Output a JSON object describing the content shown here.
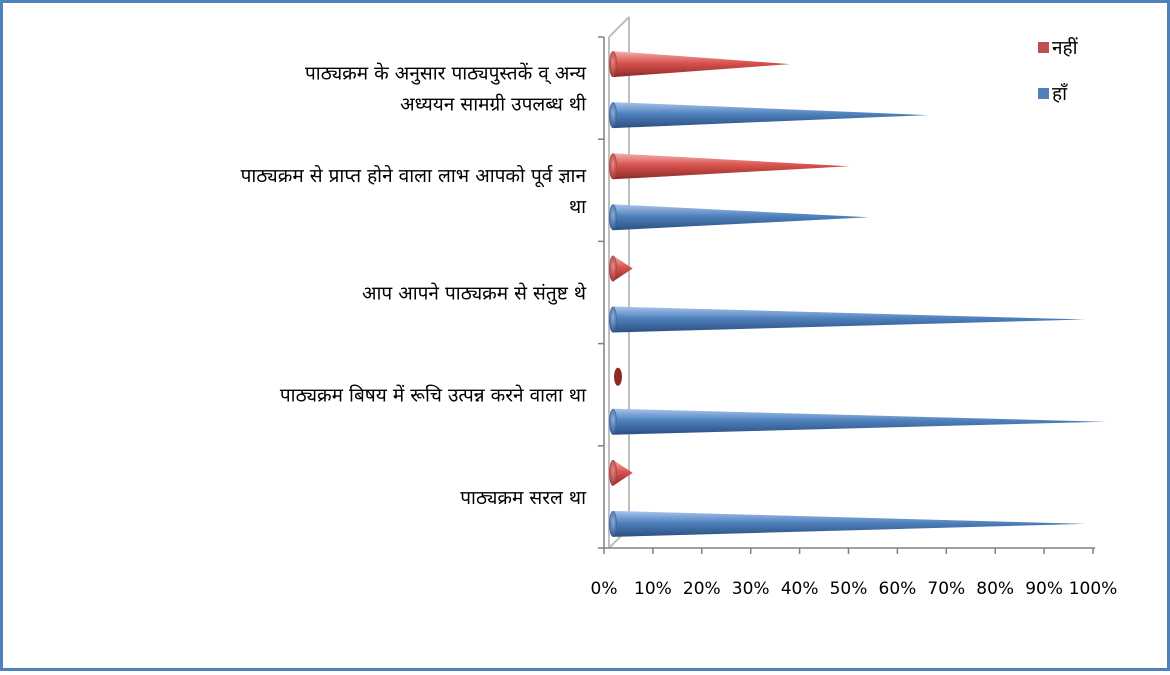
{
  "chart_data": {
    "type": "bar",
    "orientation": "horizontal",
    "style": "3d-cone",
    "categories": [
      [
        "पाठ्यक्रम के अनुसार पाठ्यपुस्तकें  व्  अन्य",
        "अध्ययन सामग्री उपलब्ध थी"
      ],
      [
        "पाठ्यक्रम से प्राप्त होने वाला लाभ आपको पूर्व ज्ञान",
        "था"
      ],
      [
        "आप आपने पाठ्यक्रम से संतुष्ट थे"
      ],
      [
        "पाठ्यक्रम बिषय में रूचि उत्पन्न करने  वाला  था"
      ],
      [
        "पाठ्यक्रम सरल था"
      ]
    ],
    "series": [
      {
        "name": "नहीं",
        "values": [
          36,
          48,
          4,
          0.5,
          4
        ]
      },
      {
        "name": "हाँ",
        "values": [
          64,
          52,
          96,
          100,
          96
        ]
      }
    ],
    "xlim": [
      0,
      100
    ],
    "xticks": [
      "0%",
      "10%",
      "20%",
      "30%",
      "40%",
      "50%",
      "60%",
      "70%",
      "80%",
      "90%",
      "100%"
    ],
    "legend": {
      "position": "top-right",
      "entries": [
        "नहीं",
        "हाँ"
      ]
    },
    "grid": false,
    "colors": {
      "नहीं": "#c0504d",
      "हाँ": "#4f81bd",
      "frame": "#4f81bd",
      "axis": "#808080"
    }
  }
}
